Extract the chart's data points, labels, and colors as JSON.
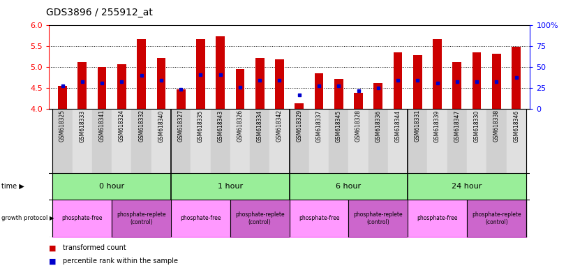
{
  "title": "GDS3896 / 255912_at",
  "samples": [
    "GSM618325",
    "GSM618333",
    "GSM618341",
    "GSM618324",
    "GSM618332",
    "GSM618340",
    "GSM618327",
    "GSM618335",
    "GSM618343",
    "GSM618326",
    "GSM618334",
    "GSM618342",
    "GSM618329",
    "GSM618337",
    "GSM618345",
    "GSM618328",
    "GSM618336",
    "GSM618344",
    "GSM618331",
    "GSM618339",
    "GSM618347",
    "GSM618330",
    "GSM618338",
    "GSM618346"
  ],
  "bar_values": [
    4.55,
    5.12,
    5.0,
    5.07,
    5.68,
    5.22,
    4.47,
    5.68,
    5.74,
    4.95,
    5.22,
    5.18,
    4.12,
    4.85,
    4.72,
    4.38,
    4.62,
    5.35,
    5.28,
    5.67,
    5.12,
    5.35,
    5.32,
    5.48
  ],
  "percentile_values": [
    4.55,
    4.65,
    4.62,
    4.65,
    4.8,
    4.68,
    4.47,
    4.82,
    4.82,
    4.52,
    4.68,
    4.68,
    4.32,
    4.55,
    4.55,
    4.43,
    4.5,
    4.68,
    4.68,
    4.62,
    4.65,
    4.65,
    4.65,
    4.75
  ],
  "ylim_left": [
    4.0,
    6.0
  ],
  "ylim_right": [
    0,
    100
  ],
  "bar_color": "#cc0000",
  "dot_color": "#0000cc",
  "yticks_left": [
    4.0,
    4.5,
    5.0,
    5.5,
    6.0
  ],
  "yticks_right": [
    0,
    25,
    50,
    75,
    100
  ],
  "ytick_right_labels": [
    "0",
    "25",
    "50",
    "75",
    "100%"
  ],
  "dotted_lines": [
    4.5,
    5.0,
    5.5
  ],
  "time_groups": [
    {
      "label": "0 hour",
      "start": 0,
      "end": 6
    },
    {
      "label": "1 hour",
      "start": 6,
      "end": 12
    },
    {
      "label": "6 hour",
      "start": 12,
      "end": 18
    },
    {
      "label": "24 hour",
      "start": 18,
      "end": 24
    }
  ],
  "protocol_groups": [
    {
      "label": "phosphate-free",
      "start": 0,
      "end": 3,
      "color": "#ff99ff"
    },
    {
      "label": "phosphate-replete\n(control)",
      "start": 3,
      "end": 6,
      "color": "#cc66cc"
    },
    {
      "label": "phosphate-free",
      "start": 6,
      "end": 9,
      "color": "#ff99ff"
    },
    {
      "label": "phosphate-replete\n(control)",
      "start": 9,
      "end": 12,
      "color": "#cc66cc"
    },
    {
      "label": "phosphate-free",
      "start": 12,
      "end": 15,
      "color": "#ff99ff"
    },
    {
      "label": "phosphate-replete\n(control)",
      "start": 15,
      "end": 18,
      "color": "#cc66cc"
    },
    {
      "label": "phosphate-free",
      "start": 18,
      "end": 21,
      "color": "#ff99ff"
    },
    {
      "label": "phosphate-replete\n(control)",
      "start": 21,
      "end": 24,
      "color": "#cc66cc"
    }
  ],
  "bar_width": 0.45,
  "time_row_color": "#99ee99",
  "bg_color": "white"
}
